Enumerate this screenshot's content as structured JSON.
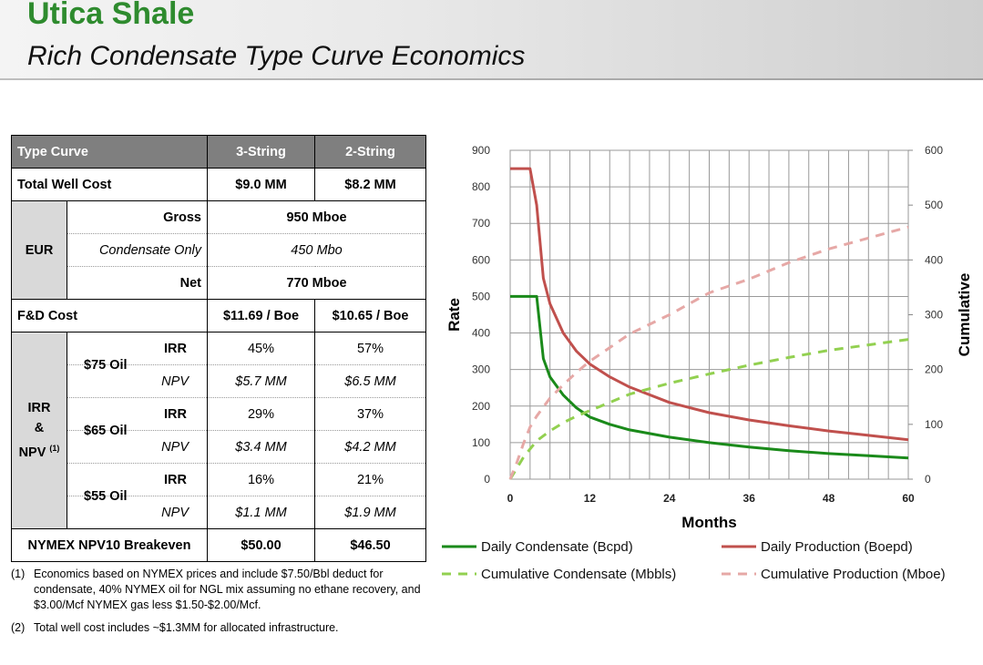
{
  "header": {
    "title": "Utica Shale",
    "subtitle": "Rich Condensate Type Curve Economics"
  },
  "table": {
    "headers": [
      "Type Curve",
      "3-String",
      "2-String"
    ],
    "total_well_cost": {
      "label": "Total Well Cost",
      "v3": "$9.0 MM",
      "v2": "$8.2 MM"
    },
    "eur": {
      "label": "EUR",
      "gross": {
        "label": "Gross",
        "value": "950 Mboe"
      },
      "condensate_only": {
        "label": "Condensate Only",
        "value": "450 Mbo"
      },
      "net": {
        "label": "Net",
        "value": "770 Mboe"
      }
    },
    "fd_cost": {
      "label": "F&D Cost",
      "v3": "$11.69 / Boe",
      "v2": "$10.65 / Boe"
    },
    "irr_npv_label": {
      "line1": "IRR",
      "line2": "&",
      "line3": "NPV",
      "sup": "(1)"
    },
    "scenarios": [
      {
        "oil": "$75 Oil",
        "irr_label": "IRR",
        "npv_label": "NPV",
        "irr3": "45%",
        "irr2": "57%",
        "npv3": "$5.7 MM",
        "npv2": "$6.5 MM"
      },
      {
        "oil": "$65 Oil",
        "irr_label": "IRR",
        "npv_label": "NPV",
        "irr3": "29%",
        "irr2": "37%",
        "npv3": "$3.4 MM",
        "npv2": "$4.2 MM"
      },
      {
        "oil": "$55 Oil",
        "irr_label": "IRR",
        "npv_label": "NPV",
        "irr3": "16%",
        "irr2": "21%",
        "npv3": "$1.1 MM",
        "npv2": "$1.9 MM"
      }
    ],
    "breakeven": {
      "label": "NYMEX NPV10 Breakeven",
      "v3": "$50.00",
      "v2": "$46.50"
    }
  },
  "notes": [
    {
      "num": "(1)",
      "text": "Economics based on NYMEX prices and include $7.50/Bbl deduct for condensate, 40% NYMEX oil for NGL mix assuming no ethane recovery, and $3.00/Mcf NYMEX gas less $1.50-$2.00/Mcf."
    },
    {
      "num": "(2)",
      "text": "Total well cost includes ~$1.3MM for allocated infrastructure."
    }
  ],
  "chart_data": {
    "type": "line",
    "xlabel": "Months",
    "ylabel": "Rate",
    "y2label": "Cumulative",
    "xlim": [
      0,
      60
    ],
    "ylim": [
      0,
      900
    ],
    "y2lim": [
      0,
      600
    ],
    "x_ticks": [
      0,
      12,
      24,
      36,
      48,
      60
    ],
    "y_ticks": [
      0,
      100,
      200,
      300,
      400,
      500,
      600,
      700,
      800,
      900
    ],
    "y2_ticks": [
      0,
      100,
      200,
      300,
      400,
      500,
      600
    ],
    "grid": true,
    "legend_placement": "bottom",
    "series": [
      {
        "name": "Daily Condensate (Bcpd)",
        "axis": "left",
        "style": "solid",
        "color": "#1a8a1a",
        "x": [
          0,
          4,
          5,
          6,
          8,
          10,
          12,
          15,
          18,
          24,
          30,
          36,
          42,
          48,
          54,
          60
        ],
        "y": [
          500,
          500,
          330,
          280,
          230,
          195,
          170,
          150,
          135,
          115,
          100,
          88,
          78,
          70,
          64,
          58
        ]
      },
      {
        "name": "Daily Production (Boepd)",
        "axis": "left",
        "style": "solid",
        "color": "#c0504d",
        "x": [
          0,
          3,
          4,
          5,
          6,
          8,
          10,
          12,
          15,
          18,
          24,
          30,
          36,
          42,
          48,
          54,
          60
        ],
        "y": [
          850,
          850,
          750,
          550,
          480,
          400,
          350,
          315,
          280,
          252,
          210,
          182,
          162,
          146,
          132,
          120,
          108
        ]
      },
      {
        "name": "Cumulative Condensate (Mbbls)",
        "axis": "right",
        "style": "dashed",
        "color": "#92d050",
        "x": [
          0,
          1,
          2,
          3,
          4,
          6,
          8,
          10,
          12,
          15,
          18,
          24,
          30,
          36,
          42,
          48,
          54,
          60
        ],
        "y": [
          0,
          20,
          40,
          55,
          70,
          88,
          103,
          115,
          125,
          140,
          155,
          175,
          192,
          208,
          222,
          235,
          245,
          255
        ]
      },
      {
        "name": "Cumulative Production (Mboe)",
        "axis": "right",
        "style": "dashed",
        "color": "#e6a8a6",
        "x": [
          0,
          1,
          2,
          3,
          4,
          6,
          8,
          10,
          12,
          15,
          18,
          24,
          30,
          36,
          42,
          48,
          54,
          60
        ],
        "y": [
          0,
          30,
          65,
          95,
          115,
          148,
          172,
          195,
          215,
          240,
          265,
          300,
          340,
          365,
          395,
          420,
          440,
          460
        ]
      }
    ]
  }
}
